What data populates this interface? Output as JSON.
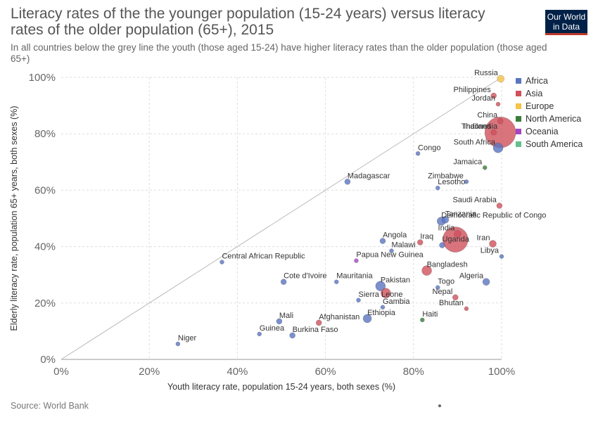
{
  "header": {
    "title": "Literacy rates of the the younger population (15-24 years) versus literacy rates of the older population (65+), 2015",
    "subtitle": "In all countries below the grey line the youth (those aged 15-24) have higher literacy rates than the older population (those aged 65+)",
    "logo_line1": "Our World",
    "logo_line2": "in Data"
  },
  "footer": {
    "source": "Source: World Bank"
  },
  "chart_data": {
    "type": "scatter",
    "title": "Literacy rates of the the younger population (15-24 years) versus literacy rates of the older population (65+), 2015",
    "xlabel": "Youth literacy rate, population 15-24 years, both sexes (%)",
    "ylabel": "Elderly literacy rate, population 65+ years, both sexes (%)",
    "xlim": [
      0,
      100
    ],
    "ylim": [
      0,
      100
    ],
    "xticks": [
      "0%",
      "20%",
      "40%",
      "60%",
      "80%",
      "100%"
    ],
    "yticks": [
      "0%",
      "20%",
      "40%",
      "60%",
      "80%",
      "100%"
    ],
    "grid": true,
    "reference_line": "y = x",
    "legend_position": "top-right",
    "colors": {
      "Africa": "#5a74c0",
      "Asia": "#d0505b",
      "Europe": "#f6c344",
      "North America": "#3a7c3a",
      "Oceania": "#a248c2",
      "South America": "#64c08c"
    },
    "legend": [
      "Africa",
      "Asia",
      "Europe",
      "North America",
      "Oceania",
      "South America"
    ],
    "points": [
      {
        "label": "Russia",
        "x": 99.8,
        "y": 99.5,
        "region": "Europe",
        "r": 5
      },
      {
        "label": "Philippines",
        "x": 98.2,
        "y": 93.5,
        "region": "Asia",
        "r": 4
      },
      {
        "label": "Jordan",
        "x": 99.2,
        "y": 90.5,
        "region": "Asia",
        "r": 3
      },
      {
        "label": "China",
        "x": 99.7,
        "y": 84.5,
        "region": "Asia",
        "r": 4
      },
      {
        "label": "Thailand",
        "x": 98.2,
        "y": 80.5,
        "region": "Asia",
        "r": 4
      },
      {
        "label": "Indonesia",
        "x": 99.7,
        "y": 80.5,
        "region": "Asia",
        "r": 22
      },
      {
        "label": "South Africa",
        "x": 99.2,
        "y": 75,
        "region": "Africa",
        "r": 7
      },
      {
        "label": "Congo",
        "x": 81,
        "y": 73,
        "region": "Africa",
        "r": 3
      },
      {
        "label": "Jamaica",
        "x": 96.2,
        "y": 68,
        "region": "North America",
        "r": 3
      },
      {
        "label": "Madagascar",
        "x": 65,
        "y": 63,
        "region": "Africa",
        "r": 4
      },
      {
        "label": "Lesotho",
        "x": 85.5,
        "y": 60.8,
        "region": "Africa",
        "r": 3
      },
      {
        "label": "Zimbabwe",
        "x": 92,
        "y": 63,
        "region": "Africa",
        "r": 3
      },
      {
        "label": "Saudi Arabia",
        "x": 99.5,
        "y": 54.5,
        "region": "Asia",
        "r": 4
      },
      {
        "label": "Tanzania",
        "x": 87.2,
        "y": 49.5,
        "region": "Africa",
        "r": 5
      },
      {
        "label": "Democratic Republic of Congo",
        "x": 86.3,
        "y": 49,
        "region": "Africa",
        "r": 6
      },
      {
        "label": "India",
        "x": 90,
        "y": 44.5,
        "region": "Asia",
        "r": 5
      },
      {
        "label": "Uganda",
        "x": 86.5,
        "y": 40.5,
        "region": "Africa",
        "r": 4
      },
      {
        "label": "",
        "x": 89.5,
        "y": 42.5,
        "region": "Asia",
        "r": 18
      },
      {
        "label": "Iran",
        "x": 98,
        "y": 41,
        "region": "Asia",
        "r": 5
      },
      {
        "label": "Libya",
        "x": 100,
        "y": 36.5,
        "region": "Africa",
        "r": 3
      },
      {
        "label": "Iraq",
        "x": 81.5,
        "y": 41.5,
        "region": "Asia",
        "r": 4
      },
      {
        "label": "Angola",
        "x": 73,
        "y": 42,
        "region": "Africa",
        "r": 4
      },
      {
        "label": "Malawi",
        "x": 75,
        "y": 38.5,
        "region": "Africa",
        "r": 3
      },
      {
        "label": "Papua New Guinea",
        "x": 67,
        "y": 35,
        "region": "Oceania",
        "r": 3
      },
      {
        "label": "Central African Republic",
        "x": 36.5,
        "y": 34.5,
        "region": "Africa",
        "r": 3
      },
      {
        "label": "Bangladesh",
        "x": 83,
        "y": 31.5,
        "region": "Asia",
        "r": 7
      },
      {
        "label": "Cote d'Ivoire",
        "x": 50.5,
        "y": 27.5,
        "region": "Africa",
        "r": 4
      },
      {
        "label": "Mauritania",
        "x": 62.5,
        "y": 27.5,
        "region": "Africa",
        "r": 3
      },
      {
        "label": "Algeria",
        "x": 96.5,
        "y": 27.5,
        "region": "Africa",
        "r": 5
      },
      {
        "label": "Pakistan",
        "x": 72.5,
        "y": 26,
        "region": "Africa",
        "r": 7
      },
      {
        "label": "",
        "x": 73.7,
        "y": 23.5,
        "region": "Asia",
        "r": 7
      },
      {
        "label": "Togo",
        "x": 85.5,
        "y": 25.5,
        "region": "Africa",
        "r": 3
      },
      {
        "label": "Nepal",
        "x": 89.5,
        "y": 22,
        "region": "Asia",
        "r": 4
      },
      {
        "label": "Sierra Leone",
        "x": 67.5,
        "y": 21,
        "region": "Africa",
        "r": 3
      },
      {
        "label": "Bhutan",
        "x": 92,
        "y": 18,
        "region": "Asia",
        "r": 3
      },
      {
        "label": "Gambia",
        "x": 73,
        "y": 18.5,
        "region": "Africa",
        "r": 3
      },
      {
        "label": "Ethiopia",
        "x": 69.5,
        "y": 14.5,
        "region": "Africa",
        "r": 6
      },
      {
        "label": "Haiti",
        "x": 82,
        "y": 14,
        "region": "North America",
        "r": 3
      },
      {
        "label": "Mali",
        "x": 49.5,
        "y": 13.5,
        "region": "Africa",
        "r": 4
      },
      {
        "label": "Afghanistan",
        "x": 58.5,
        "y": 13,
        "region": "Asia",
        "r": 4
      },
      {
        "label": "Guinea",
        "x": 45,
        "y": 9,
        "region": "Africa",
        "r": 3
      },
      {
        "label": "Burkina Faso",
        "x": 52.5,
        "y": 8.5,
        "region": "Africa",
        "r": 4
      },
      {
        "label": "Niger",
        "x": 26.5,
        "y": 5.5,
        "region": "Africa",
        "r": 3
      }
    ]
  }
}
